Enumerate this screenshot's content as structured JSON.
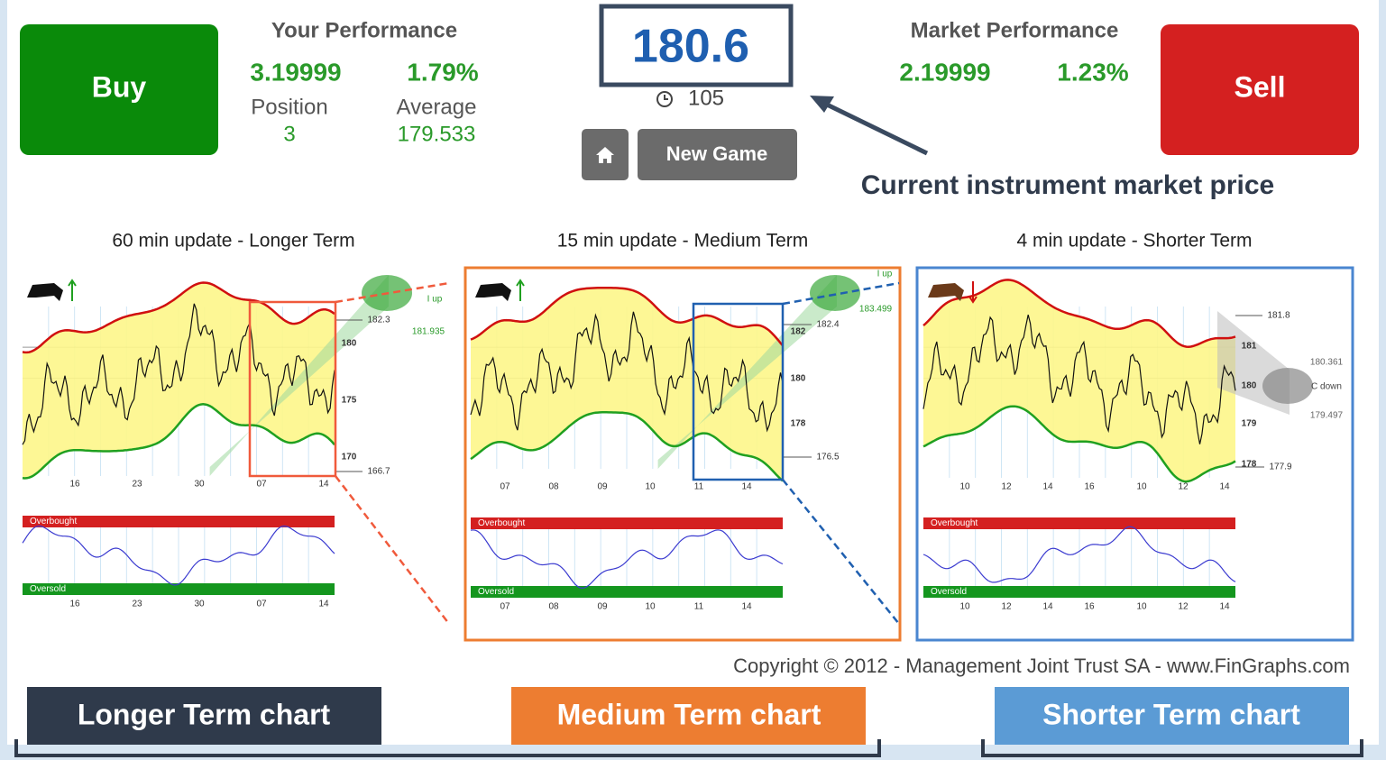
{
  "buy_button": "Buy",
  "sell_button": "Sell",
  "your_performance": {
    "title": "Your Performance",
    "profit": "3.19999",
    "percent": "1.79%",
    "position_label": "Position",
    "position": "3",
    "average_label": "Average",
    "average": "179.533"
  },
  "price": {
    "value": "180.6",
    "timer": "105"
  },
  "new_game_button": "New Game",
  "market_performance": {
    "title": "Market Performance",
    "profit": "2.19999",
    "percent": "1.23%"
  },
  "price_note": "Current instrument market price",
  "panels": [
    {
      "title": "60 min update - Longer Term",
      "price_labels": [
        "182.3",
        "180",
        "175",
        "170",
        "166.7"
      ],
      "side_labels": [
        "I up",
        "181.935"
      ],
      "overbought": "Overbought",
      "oversold": "Oversold",
      "x_labels": [
        "16",
        "23",
        "30",
        "07",
        "14"
      ]
    },
    {
      "title": "15 min update - Medium Term",
      "price_labels": [
        "182.4",
        "182",
        "180",
        "178",
        "176.5"
      ],
      "side_labels": [
        "I up",
        "183.499"
      ],
      "overbought": "Overbought",
      "oversold": "Oversold",
      "x_labels": [
        "07",
        "08",
        "09",
        "10",
        "11",
        "14"
      ]
    },
    {
      "title": "4 min update - Shorter Term",
      "price_labels": [
        "181.8",
        "181",
        "180",
        "179",
        "178",
        "177.9"
      ],
      "side_labels": [
        "180.361",
        "C down",
        "179.497"
      ],
      "overbought": "Overbought",
      "oversold": "Oversold",
      "x_labels": [
        "10",
        "12",
        "14",
        "16",
        "10",
        "12",
        "14"
      ]
    }
  ],
  "copyright": "Copyright © 2012 - Management Joint Trust SA - www.FinGraphs.com",
  "chart_labels": [
    "Longer Term chart",
    "Medium Term chart",
    "Shorter Term chart"
  ]
}
